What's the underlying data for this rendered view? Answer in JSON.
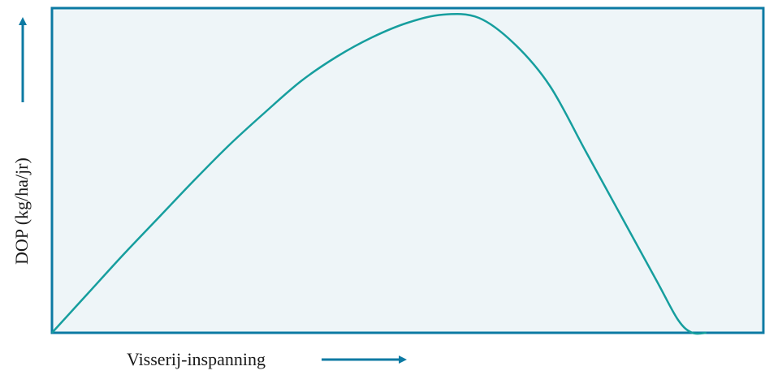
{
  "chart_data": {
    "type": "line",
    "xlabel": "Visserij-inspanning",
    "ylabel": "DOP (kg/ha/jr)",
    "xlim": [
      0,
      100
    ],
    "ylim": [
      0,
      100
    ],
    "grid": false,
    "series": [
      {
        "x": [
          0,
          5,
          10,
          15,
          20,
          25,
          30,
          35,
          40,
          45,
          50,
          55,
          60,
          65,
          70,
          75,
          80,
          85,
          88,
          90,
          92
        ],
        "y": [
          0,
          12,
          24,
          35.5,
          47,
          58,
          68,
          77.5,
          85,
          91,
          95.5,
          98,
          97,
          89,
          76,
          56,
          36,
          16,
          4,
          0,
          0
        ]
      }
    ],
    "colors": {
      "plot_background": "#eef5f8",
      "frame": "#0c7aa3",
      "line": "#169e9e",
      "arrow": "#0c7aa3",
      "text": "#1a1a1a"
    }
  }
}
